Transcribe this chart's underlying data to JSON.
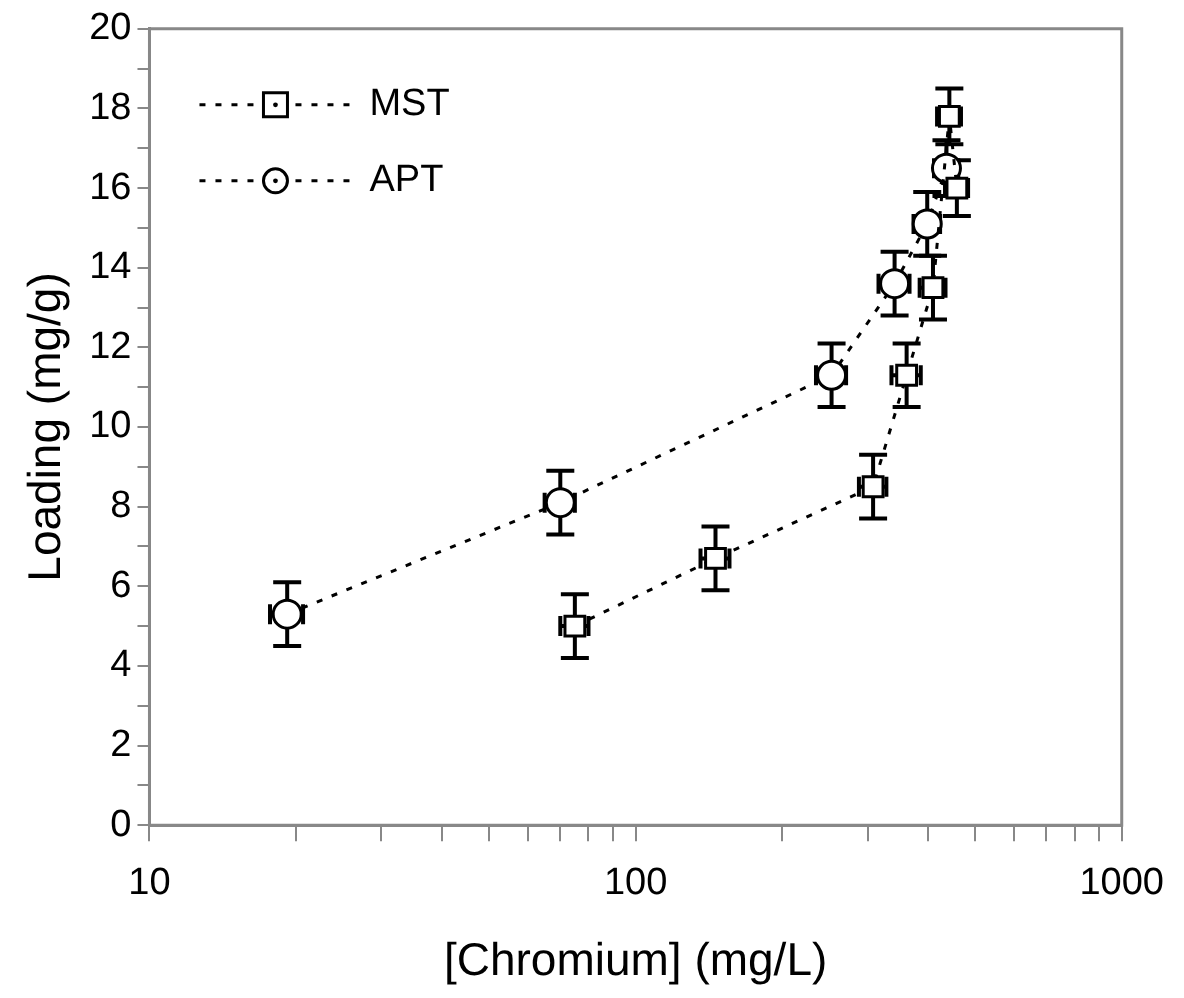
{
  "chart_data": {
    "type": "line",
    "xlabel": "[Chromium] (mg/L)",
    "ylabel": "Loading (mg/g)",
    "log": "x",
    "grid": false,
    "legend": "top left",
    "line_style": "dotted",
    "xlim": [
      10,
      1000
    ],
    "xticks": [
      10,
      {
        "value": 20,
        "label": null
      },
      {
        "value": 30,
        "label": null
      },
      {
        "value": 40,
        "label": null
      },
      {
        "value": 50,
        "label": null
      },
      {
        "value": 60,
        "label": null
      },
      {
        "value": 70,
        "label": null
      },
      {
        "value": 80,
        "label": null
      },
      {
        "value": 90,
        "label": null
      },
      100,
      {
        "value": 200,
        "label": null
      },
      {
        "value": 300,
        "label": null
      },
      {
        "value": 400,
        "label": null
      },
      {
        "value": 500,
        "label": null
      },
      {
        "value": 600,
        "label": null
      },
      {
        "value": 700,
        "label": null
      },
      {
        "value": 800,
        "label": null
      },
      {
        "value": 900,
        "label": null
      },
      1000
    ],
    "ylim": [
      0,
      20
    ],
    "yticks": [
      0,
      {
        "value": 1,
        "label": null
      },
      2,
      {
        "value": 3,
        "label": null
      },
      4,
      {
        "value": 5,
        "label": null
      },
      6,
      {
        "value": 7,
        "label": null
      },
      8,
      {
        "value": 9,
        "label": null
      },
      10,
      {
        "value": 11,
        "label": null
      },
      12,
      {
        "value": 13,
        "label": null
      },
      14,
      {
        "value": 15,
        "label": null
      },
      16,
      {
        "value": 17,
        "label": null
      },
      18,
      {
        "value": 19,
        "label": null
      },
      20
    ],
    "series": [
      {
        "name": "MST",
        "color": "#000000",
        "marker": "square",
        "x": [
          75,
          146,
          308,
          361,
          409,
          442,
          458
        ],
        "values": [
          5.0,
          6.7,
          8.5,
          11.3,
          13.5,
          17.8,
          16.0
        ],
        "errors": [
          0.8,
          0.8,
          0.8,
          0.8,
          0.8,
          0.7,
          0.7
        ],
        "xerrors": [
          5,
          10,
          20,
          25,
          25,
          25,
          25
        ]
      },
      {
        "name": "APT",
        "color": "#000000",
        "marker": "circle",
        "x": [
          19.2,
          70,
          253,
          341,
          398,
          436
        ],
        "values": [
          5.3,
          8.1,
          11.3,
          13.6,
          15.1,
          16.5
        ],
        "errors": [
          0.8,
          0.8,
          0.8,
          0.8,
          0.8,
          0.7
        ],
        "xerrors": [
          1.5,
          5,
          18,
          25,
          25,
          25
        ]
      }
    ]
  }
}
